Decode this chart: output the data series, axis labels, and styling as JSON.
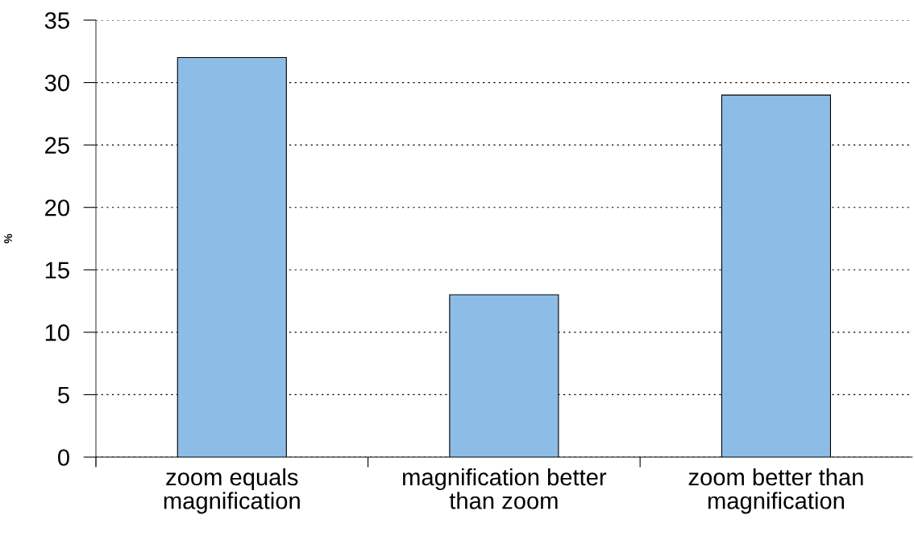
{
  "chart_data": {
    "type": "bar",
    "categories": [
      "zoom equals\nmagnification",
      "magnification better\nthan zoom",
      "zoom better than\nmagnification"
    ],
    "values": [
      32,
      13,
      29
    ],
    "color": "#8dbde6",
    "ylabel": "%",
    "ylim": [
      0,
      35
    ],
    "yticks": [
      0,
      5,
      10,
      15,
      20,
      25,
      30,
      35
    ],
    "grid": "y"
  }
}
